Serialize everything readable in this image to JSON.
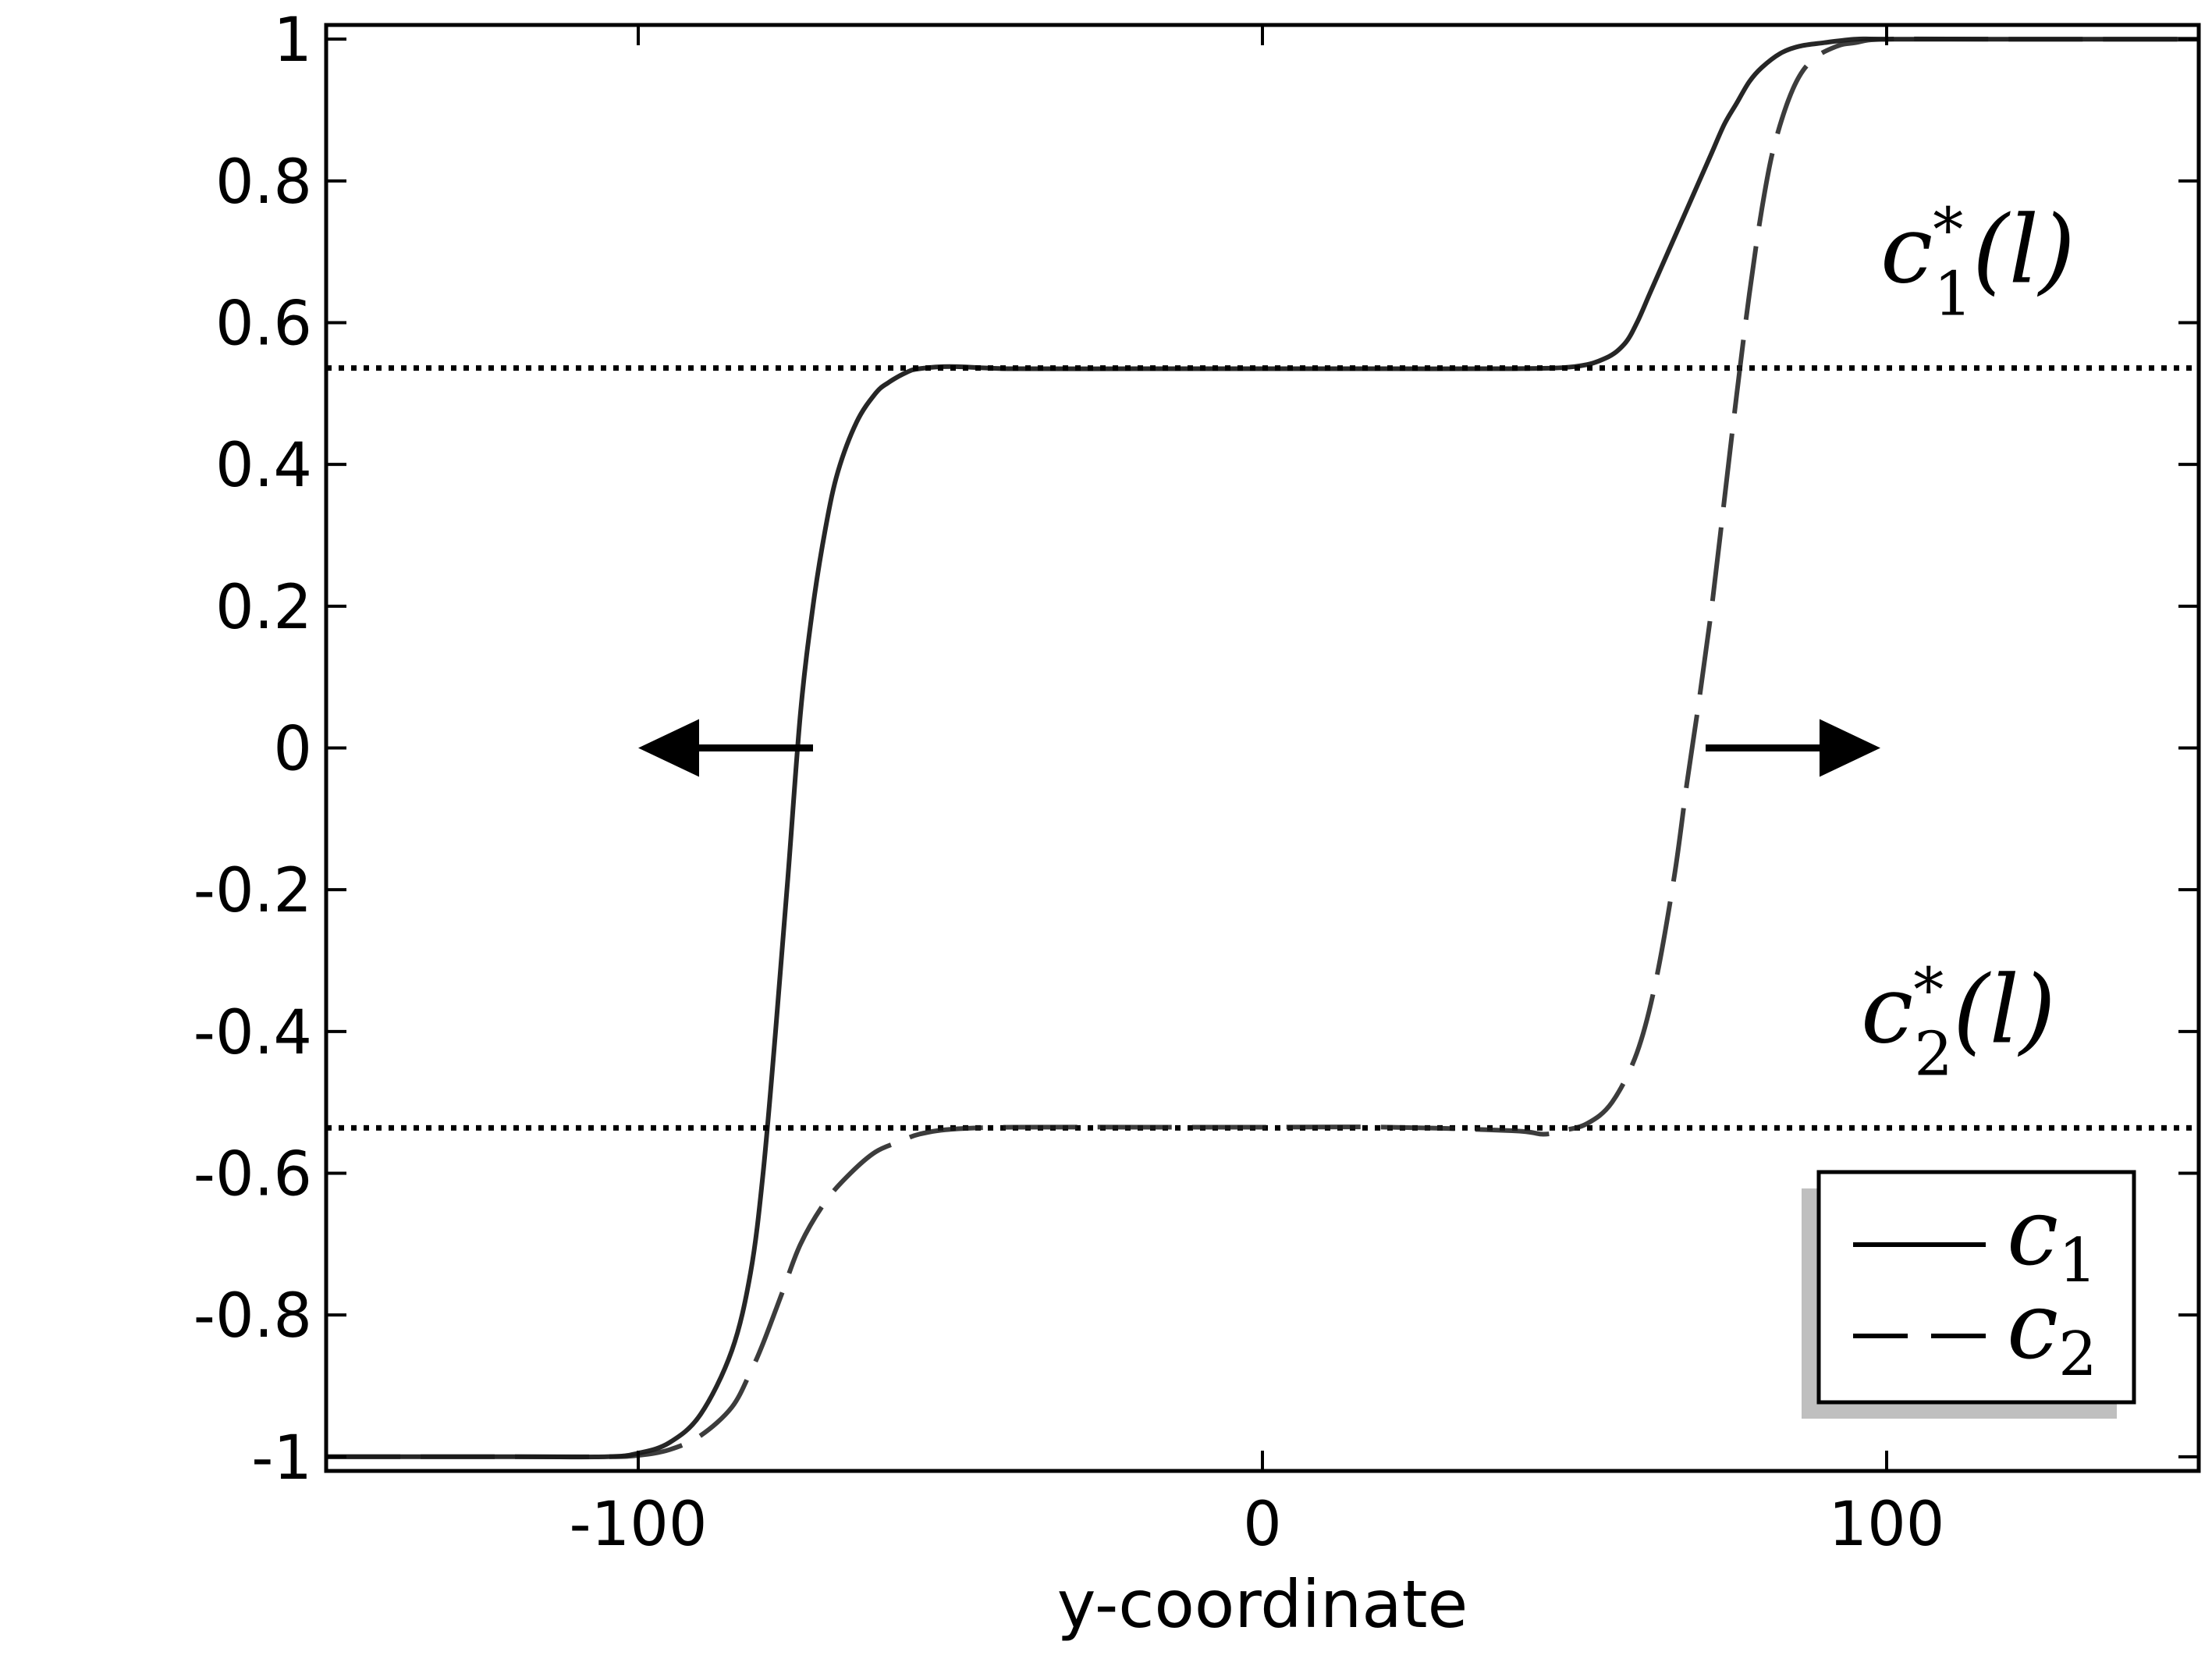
{
  "chart_data": {
    "type": "line",
    "title": "",
    "xlabel": "y-coordinate",
    "ylabel": "",
    "xlim": [
      -150,
      150
    ],
    "ylim": [
      -1.02,
      1.02
    ],
    "x_ticks": [
      -100,
      0,
      100
    ],
    "x_tick_labels": [
      "-100",
      "0",
      "100"
    ],
    "y_ticks": [
      1,
      0.8,
      0.6,
      0.4,
      0.2,
      0,
      -0.2,
      -0.4,
      -0.6,
      -0.8,
      -1
    ],
    "y_tick_labels": [
      "1",
      "0.8",
      "0.6",
      "0.4",
      "0.2",
      "0",
      "-0.2",
      "-0.4",
      "-0.6",
      "-0.8",
      "-1"
    ],
    "grid": false,
    "legend_position": "bottom-right",
    "series": [
      {
        "name": "c1",
        "style": "solid",
        "x": [
          -150,
          -120,
          -105,
          -100,
          -95,
          -90,
          -85,
          -82,
          -80,
          -78,
          -76,
          -74,
          -72,
          -70,
          -68,
          -65,
          -62,
          -60,
          -57,
          -55,
          -50,
          -40,
          -20,
          0,
          20,
          40,
          50,
          55,
          58,
          60,
          62,
          64,
          66,
          68,
          70,
          72,
          74,
          76,
          78,
          80,
          83,
          86,
          90,
          95,
          100,
          120,
          150
        ],
        "y": [
          -1.0,
          -1.0,
          -1.0,
          -0.995,
          -0.98,
          -0.94,
          -0.85,
          -0.74,
          -0.6,
          -0.4,
          -0.18,
          0.05,
          0.2,
          0.31,
          0.39,
          0.46,
          0.5,
          0.515,
          0.53,
          0.535,
          0.538,
          0.535,
          0.535,
          0.535,
          0.535,
          0.535,
          0.538,
          0.55,
          0.57,
          0.6,
          0.64,
          0.68,
          0.72,
          0.76,
          0.8,
          0.84,
          0.88,
          0.91,
          0.94,
          0.96,
          0.98,
          0.99,
          0.995,
          1.0,
          1.0,
          1.0,
          1.0
        ]
      },
      {
        "name": "c2",
        "style": "dashed",
        "x": [
          -150,
          -120,
          -105,
          -100,
          -95,
          -90,
          -85,
          -82,
          -80,
          -77,
          -74,
          -70,
          -66,
          -62,
          -58,
          -55,
          -50,
          -40,
          -20,
          0,
          20,
          40,
          45,
          48,
          52,
          56,
          60,
          63,
          66,
          68,
          70,
          72,
          74,
          76,
          78,
          80,
          82,
          85,
          88,
          92,
          95,
          100,
          120,
          150
        ],
        "y": [
          -1.0,
          -1.0,
          -1.0,
          -0.998,
          -0.99,
          -0.97,
          -0.93,
          -0.88,
          -0.84,
          -0.77,
          -0.7,
          -0.64,
          -0.6,
          -0.57,
          -0.555,
          -0.545,
          -0.538,
          -0.535,
          -0.535,
          -0.535,
          -0.535,
          -0.54,
          -0.545,
          -0.54,
          -0.53,
          -0.5,
          -0.43,
          -0.33,
          -0.18,
          -0.05,
          0.07,
          0.2,
          0.35,
          0.5,
          0.64,
          0.76,
          0.85,
          0.93,
          0.97,
          0.99,
          0.995,
          1.0,
          1.0,
          1.0
        ]
      }
    ],
    "reference_lines": [
      {
        "label": "c1*(l)",
        "y": 0.536,
        "style": "dotted"
      },
      {
        "label": "c2*(l)",
        "y": -0.536,
        "style": "dotted"
      }
    ],
    "annotations": [
      {
        "type": "arrow",
        "direction": "left",
        "from": [
          -72,
          0
        ],
        "to": [
          -100,
          0
        ]
      },
      {
        "type": "arrow",
        "direction": "right",
        "from": [
          71,
          0
        ],
        "to": [
          99,
          0
        ]
      }
    ],
    "labels": {
      "ref1_base": "c",
      "ref1_sub": "1",
      "ref1_sup": "*",
      "ref1_arg": "(l)",
      "ref2_base": "c",
      "ref2_sub": "2",
      "ref2_sup": "*",
      "ref2_arg": "(l)",
      "legend1_base": "c",
      "legend1_sub": "1",
      "legend2_base": "c",
      "legend2_sub": "2"
    }
  }
}
